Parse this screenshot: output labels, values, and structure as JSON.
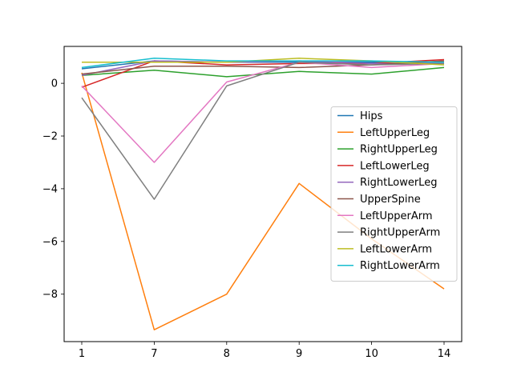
{
  "chart_data": {
    "type": "line",
    "title": "",
    "xlabel": "",
    "ylabel": "",
    "categories": [
      "1",
      "7",
      "8",
      "9",
      "10",
      "14"
    ],
    "ylim": [
      -9.8,
      1.4
    ],
    "yticks": [
      0,
      -2,
      -4,
      -6,
      -8
    ],
    "ytick_labels": [
      "0",
      "−2",
      "−4",
      "−6",
      "−8"
    ],
    "grid": false,
    "legend_position": "center-right",
    "series": [
      {
        "name": "Hips",
        "color": "#1f77b4",
        "values": [
          0.55,
          0.85,
          0.8,
          0.8,
          0.8,
          0.8
        ]
      },
      {
        "name": "LeftUpperLeg",
        "color": "#ff7f0e",
        "values": [
          0.4,
          -9.35,
          -8.0,
          -3.8,
          -5.9,
          -7.8
        ]
      },
      {
        "name": "RightUpperLeg",
        "color": "#2ca02c",
        "values": [
          0.3,
          0.5,
          0.25,
          0.45,
          0.35,
          0.6
        ]
      },
      {
        "name": "LeftLowerLeg",
        "color": "#d62728",
        "values": [
          -0.15,
          0.85,
          0.7,
          0.75,
          0.75,
          0.9
        ]
      },
      {
        "name": "RightLowerLeg",
        "color": "#9467bd",
        "values": [
          0.3,
          0.85,
          0.8,
          0.85,
          0.75,
          0.75
        ]
      },
      {
        "name": "UpperSpine",
        "color": "#8c564b",
        "values": [
          0.35,
          0.65,
          0.65,
          0.6,
          0.7,
          0.85
        ]
      },
      {
        "name": "LeftUpperArm",
        "color": "#e377c2",
        "values": [
          -0.1,
          -3.0,
          0.05,
          0.8,
          0.6,
          0.75
        ]
      },
      {
        "name": "RightUpperArm",
        "color": "#7f7f7f",
        "values": [
          -0.55,
          -4.4,
          -0.1,
          0.8,
          0.7,
          0.75
        ]
      },
      {
        "name": "LeftLowerArm",
        "color": "#bcbd22",
        "values": [
          0.8,
          0.8,
          0.8,
          0.95,
          0.85,
          0.7
        ]
      },
      {
        "name": "RightLowerArm",
        "color": "#17becf",
        "values": [
          0.6,
          0.95,
          0.85,
          0.85,
          0.85,
          0.8
        ]
      }
    ]
  }
}
